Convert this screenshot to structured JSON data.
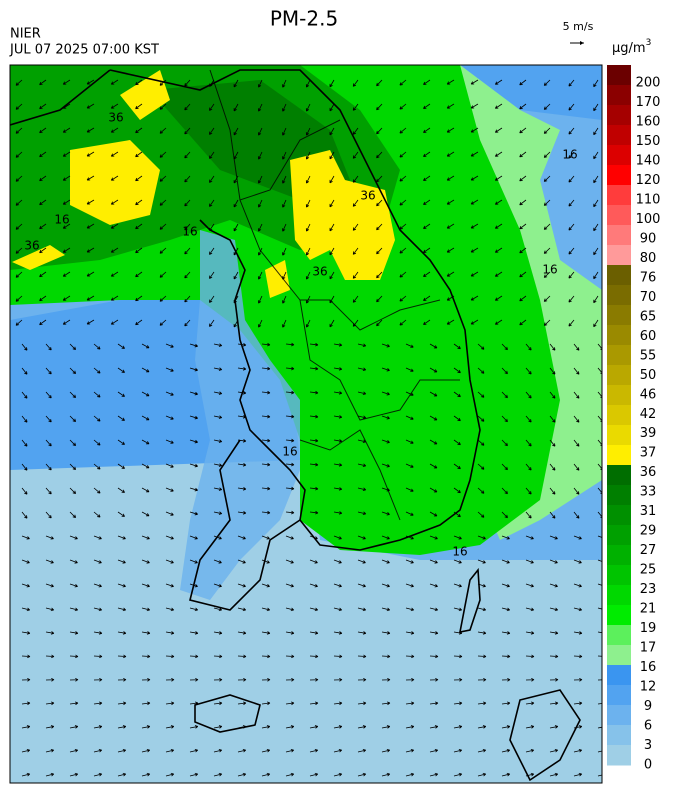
{
  "header": {
    "title": "PM-2.5",
    "agency": "NIER",
    "datetime": "JUL 07 2025 07:00 KST",
    "wind_scale": "5 m/s"
  },
  "colorbar": {
    "unit": "μg/m",
    "unit_sup": "3",
    "levels": [
      200,
      170,
      160,
      150,
      140,
      120,
      110,
      100,
      90,
      80,
      76,
      70,
      65,
      60,
      55,
      50,
      46,
      42,
      39,
      37,
      36,
      33,
      31,
      29,
      27,
      25,
      23,
      21,
      19,
      17,
      16,
      12,
      9,
      6,
      3,
      0
    ],
    "colors": [
      "#6b0000",
      "#8b0000",
      "#a50000",
      "#c00000",
      "#dc0000",
      "#ff0000",
      "#ff3c3c",
      "#ff5a5a",
      "#ff7a7a",
      "#ff9a9a",
      "#6b5f00",
      "#7a6c00",
      "#8a7b00",
      "#9a8a00",
      "#aa9900",
      "#baa800",
      "#cab800",
      "#dac800",
      "#eada00",
      "#ffee00",
      "#006e00",
      "#007f00",
      "#009000",
      "#00a000",
      "#00b100",
      "#00c400",
      "#00d800",
      "#00ec00",
      "#5cf05c",
      "#8ef08e",
      "#3a95f0",
      "#52a3f0",
      "#6cb2ee",
      "#86c2ea",
      "#9fcfe6"
    ]
  },
  "map": {
    "contour_labels": [
      "16",
      "16",
      "16",
      "16",
      "16",
      "36",
      "36",
      "36",
      "36",
      "16"
    ]
  }
}
